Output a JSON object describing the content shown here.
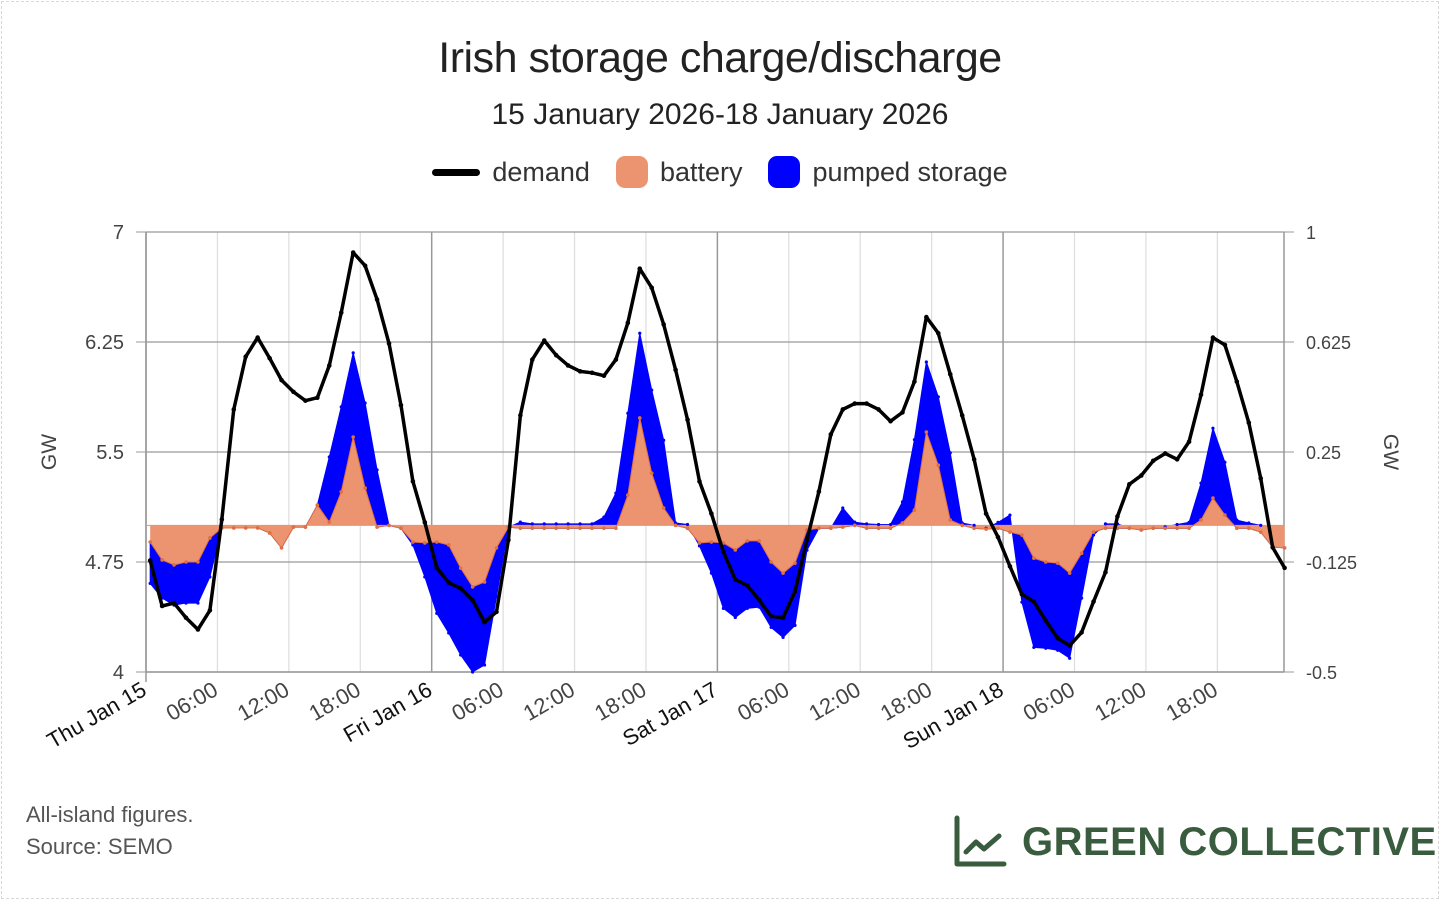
{
  "title": "Irish storage charge/discharge",
  "subtitle": "15 January 2026-18 January 2026",
  "footer": {
    "line1": "All-island figures.",
    "line2": "Source: SEMO"
  },
  "logo": {
    "text": "GREEN COLLECTIVE",
    "icon": "line-chart-icon",
    "color": "#3a5c3e"
  },
  "chart_data": {
    "type": "line+stacked-area",
    "title": "Irish storage charge/discharge",
    "subtitle": "15 January 2026-18 January 2026",
    "x_start": "2026-01-15T00:00",
    "x_step": "1 hour",
    "x_tick_labels": [
      "Thu Jan 15",
      "06:00",
      "12:00",
      "18:00",
      "Fri Jan 16",
      "06:00",
      "12:00",
      "18:00",
      "Sat Jan 17",
      "06:00",
      "12:00",
      "18:00",
      "Sun Jan 18",
      "06:00",
      "12:00",
      "18:00"
    ],
    "left_axis": {
      "label": "GW",
      "range": [
        4,
        7
      ],
      "ticks": [
        "4",
        "4.75",
        "5.5",
        "6.25",
        "7"
      ]
    },
    "right_axis": {
      "label": "GW",
      "range": [
        -0.5,
        1
      ],
      "ticks": [
        "-0.5",
        "-0.125",
        "0.25",
        "0.625",
        "1"
      ]
    },
    "grid": true,
    "legend_placement": "top",
    "series": [
      {
        "name": "demand",
        "axis": "left",
        "kind": "line",
        "color": "#000000",
        "values": [
          4.76,
          4.45,
          4.47,
          4.37,
          4.29,
          4.42,
          5.04,
          5.79,
          6.15,
          6.28,
          6.14,
          5.99,
          5.91,
          5.85,
          5.87,
          6.09,
          6.45,
          6.86,
          6.77,
          6.54,
          6.24,
          5.82,
          5.3,
          5.02,
          4.71,
          4.61,
          4.57,
          4.49,
          4.34,
          4.41,
          4.9,
          5.75,
          6.13,
          6.26,
          6.16,
          6.09,
          6.05,
          6.04,
          6.02,
          6.13,
          6.38,
          6.75,
          6.62,
          6.37,
          6.06,
          5.72,
          5.3,
          5.08,
          4.82,
          4.63,
          4.59,
          4.49,
          4.38,
          4.37,
          4.55,
          4.9,
          5.23,
          5.62,
          5.79,
          5.83,
          5.83,
          5.79,
          5.71,
          5.77,
          5.98,
          6.42,
          6.31,
          6.03,
          5.75,
          5.45,
          5.08,
          4.92,
          4.72,
          4.53,
          4.48,
          4.35,
          4.23,
          4.18,
          4.27,
          4.48,
          4.68,
          5.06,
          5.28,
          5.34,
          5.44,
          5.49,
          5.45,
          5.57,
          5.89,
          6.28,
          6.23,
          5.98,
          5.7,
          5.32,
          4.85,
          4.71
        ]
      },
      {
        "name": "battery",
        "axis": "right",
        "kind": "stacked-area",
        "color": "#ec9370",
        "stroke": "#e0703f",
        "values": [
          -0.057,
          -0.118,
          -0.135,
          -0.125,
          -0.125,
          -0.043,
          -0.009,
          -0.009,
          -0.009,
          -0.009,
          -0.026,
          -0.077,
          -0.006,
          -0.006,
          0.069,
          0.011,
          0.114,
          0.301,
          0.127,
          -0.006,
          0,
          -0.01,
          -0.057,
          -0.06,
          -0.057,
          -0.067,
          -0.146,
          -0.21,
          -0.193,
          -0.077,
          -0.006,
          -0.01,
          -0.01,
          -0.01,
          -0.01,
          -0.01,
          -0.01,
          -0.01,
          -0.01,
          -0.01,
          0.103,
          0.366,
          0.178,
          0.059,
          0,
          -0.01,
          -0.06,
          -0.057,
          -0.06,
          -0.084,
          -0.053,
          -0.053,
          -0.125,
          -0.163,
          -0.129,
          -0.016,
          -0.01,
          -0.01,
          -0.006,
          0,
          -0.01,
          -0.01,
          -0.01,
          0.008,
          0.052,
          0.318,
          0.205,
          0.018,
          0,
          -0.01,
          -0.013,
          -0.01,
          -0.023,
          -0.033,
          -0.112,
          -0.125,
          -0.129,
          -0.163,
          -0.095,
          -0.023,
          -0.01,
          -0.01,
          -0.01,
          -0.016,
          -0.01,
          -0.01,
          -0.01,
          -0.01,
          0.018,
          0.093,
          0.035,
          -0.01,
          -0.01,
          -0.023,
          -0.074,
          -0.077
        ]
      },
      {
        "name": "pumped storage",
        "axis": "right",
        "kind": "stacked-area",
        "color": "#0000ff",
        "values": [
          -0.141,
          -0.13,
          -0.137,
          -0.14,
          -0.14,
          -0.133,
          0,
          0,
          0,
          0,
          0,
          0,
          0,
          0,
          0,
          0.222,
          0.29,
          0.287,
          0.29,
          0.195,
          0,
          0,
          -0.01,
          -0.116,
          -0.243,
          -0.3,
          -0.296,
          -0.29,
          -0.283,
          -0.167,
          0,
          0.021,
          0.015,
          0.015,
          0.015,
          0.015,
          0.015,
          0.015,
          0.038,
          0.12,
          0.279,
          0.289,
          0.283,
          0.231,
          0.008,
          0.013,
          -0.01,
          -0.106,
          -0.223,
          -0.23,
          -0.23,
          -0.226,
          -0.223,
          -0.219,
          -0.212,
          -0.069,
          0,
          0,
          0.065,
          0.011,
          0.015,
          0.013,
          0.013,
          0.072,
          0.24,
          0.239,
          0.233,
          0.229,
          0.008,
          0.01,
          0.003,
          0.02,
          0.058,
          -0.229,
          -0.304,
          -0.294,
          -0.297,
          -0.29,
          -0.153,
          -0.01,
          0.015,
          0.015,
          0,
          0,
          0,
          0.005,
          0.013,
          0.02,
          0.126,
          0.238,
          0.18,
          0.028,
          0.018,
          0.023,
          0,
          0
        ]
      }
    ]
  }
}
